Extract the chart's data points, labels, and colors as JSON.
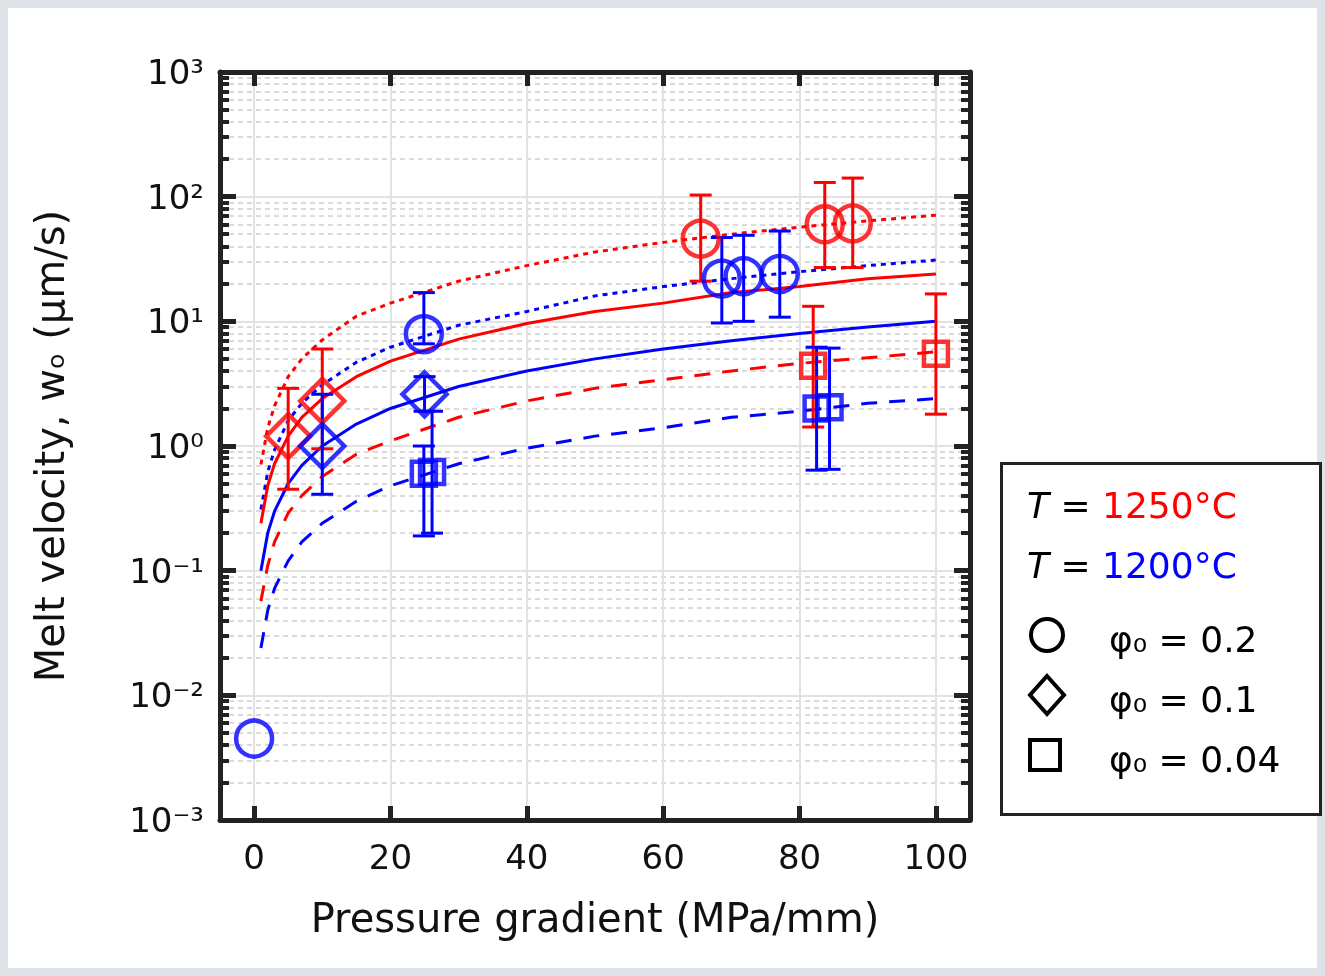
{
  "chart_data": {
    "type": "scatter",
    "xlabel": "Pressure gradient (MPa/mm)",
    "ylabel": "Melt velocity, wₒ (μm/s)",
    "log": "y",
    "grid": true,
    "xlim": [
      -5,
      105
    ],
    "xticks": [
      0,
      20,
      40,
      60,
      80,
      100
    ],
    "ylim": [
      0.001,
      1000
    ],
    "yticks": [
      {
        "value": 0.001,
        "label": "10⁻³"
      },
      {
        "value": 0.01,
        "label": "10⁻²"
      },
      {
        "value": 0.1,
        "label": "10⁻¹"
      },
      {
        "value": 1,
        "label": "10⁰"
      },
      {
        "value": 10,
        "label": "10¹"
      },
      {
        "value": 100,
        "label": "10²"
      },
      {
        "value": 1000,
        "label": "10³"
      }
    ],
    "annotations": [
      "T = 1250°C",
      "T = 1200°C",
      "φ₀ = 0.2",
      "φ₀ = 0.1",
      "φ₀ = 0.04"
    ],
    "series": [
      {
        "marker": "circle",
        "color": "#ff0000",
        "x": [
          65.5,
          83.7,
          87.8
        ],
        "values": [
          46,
          60,
          61
        ],
        "errors": [
          [
            21,
            103
          ],
          [
            27,
            130
          ],
          [
            27,
            141
          ]
        ]
      },
      {
        "marker": "circle",
        "color": "#0000ff",
        "x": [
          68.6,
          71.8,
          77.1,
          24.9,
          0
        ],
        "values": [
          22,
          23,
          24,
          7.9,
          0.0045
        ],
        "errors": [
          [
            9.7,
            47
          ],
          [
            10,
            49
          ],
          [
            10.8,
            53
          ],
          [
            6.6,
            17
          ],
          null
        ]
      },
      {
        "marker": "diamond",
        "color": "#ff0000",
        "x": [
          5,
          10
        ],
        "values": [
          1.2,
          2.3
        ],
        "errors": [
          [
            0.45,
            2.9
          ],
          [
            0.95,
            6.0
          ]
        ]
      },
      {
        "marker": "diamond",
        "color": "#0000ff",
        "x": [
          25
        ],
        "values": [
          2.6
        ],
        "errors": [
          [
            1.9,
            3.6
          ]
        ]
      },
      {
        "marker": "diamond",
        "color": "#0000ff",
        "x": [
          10
        ],
        "values": [
          1.0
        ],
        "errors": [
          [
            0.41,
            2.6
          ]
        ]
      },
      {
        "marker": "square",
        "color": "#ff0000",
        "x": [
          82,
          100
        ],
        "values": [
          4.4,
          5.5
        ],
        "errors": [
          [
            1.42,
            13.2
          ],
          [
            1.8,
            16.6
          ]
        ]
      },
      {
        "marker": "square",
        "color": "#0000ff",
        "x": [
          82.5,
          84.4
        ],
        "values": [
          2.0,
          2.05
        ],
        "errors": [
          [
            0.64,
            6.2
          ],
          [
            0.65,
            6.1
          ]
        ]
      },
      {
        "marker": "square",
        "color": "#0000ff",
        "x": [
          24.9,
          26.1
        ],
        "values": [
          0.6,
          0.62
        ],
        "errors": [
          [
            0.19,
            1.0
          ],
          [
            0.2,
            1.9
          ]
        ]
      },
      {
        "type": "line",
        "line_style": "dotted",
        "color": "#ff0000",
        "x": [
          1,
          2,
          3,
          5,
          7,
          10,
          15,
          20,
          30,
          40,
          50,
          60,
          70,
          80,
          90,
          100
        ],
        "values": [
          0.71,
          1.4,
          2.1,
          3.6,
          5.0,
          7.1,
          11,
          14,
          21,
          28,
          36,
          43,
          50,
          57,
          64,
          71
        ]
      },
      {
        "type": "line",
        "line_style": "dotted",
        "color": "#0000ff",
        "x": [
          1,
          2,
          3,
          5,
          7,
          10,
          15,
          20,
          30,
          40,
          50,
          60,
          70,
          80,
          90,
          100
        ],
        "values": [
          0.31,
          0.62,
          0.93,
          1.6,
          2.2,
          3.1,
          4.7,
          6.2,
          9.3,
          12,
          16,
          19,
          22,
          25,
          28,
          31
        ]
      },
      {
        "type": "line",
        "line_style": "solid",
        "color": "#ff0000",
        "x": [
          1,
          2,
          3,
          5,
          7,
          10,
          15,
          20,
          30,
          40,
          50,
          60,
          70,
          80,
          90,
          100
        ],
        "values": [
          0.24,
          0.48,
          0.72,
          1.2,
          1.7,
          2.4,
          3.6,
          4.8,
          7.2,
          9.6,
          12,
          14,
          17,
          19,
          22,
          24
        ]
      },
      {
        "type": "line",
        "line_style": "solid",
        "color": "#0000ff",
        "x": [
          1,
          2,
          3,
          5,
          7,
          10,
          15,
          20,
          30,
          40,
          50,
          60,
          70,
          80,
          90,
          100
        ],
        "values": [
          0.1,
          0.2,
          0.3,
          0.5,
          0.7,
          1.0,
          1.5,
          2.0,
          3.0,
          4.0,
          5.0,
          6.0,
          7.0,
          8.0,
          9.0,
          10
        ]
      },
      {
        "type": "line",
        "line_style": "dashed",
        "color": "#ff0000",
        "x": [
          1,
          2,
          3,
          5,
          7,
          10,
          15,
          20,
          30,
          40,
          50,
          60,
          70,
          80,
          90,
          100
        ],
        "values": [
          0.057,
          0.11,
          0.17,
          0.29,
          0.4,
          0.57,
          0.86,
          1.1,
          1.7,
          2.3,
          2.9,
          3.4,
          4.0,
          4.6,
          5.1,
          5.7
        ]
      },
      {
        "type": "line",
        "line_style": "dashed",
        "color": "#0000ff",
        "x": [
          1,
          2,
          3,
          5,
          7,
          10,
          15,
          20,
          30,
          40,
          50,
          60,
          70,
          80,
          90,
          100
        ],
        "values": [
          0.024,
          0.048,
          0.072,
          0.12,
          0.17,
          0.24,
          0.36,
          0.48,
          0.72,
          0.96,
          1.2,
          1.4,
          1.7,
          1.9,
          2.2,
          2.4
        ]
      }
    ]
  }
}
